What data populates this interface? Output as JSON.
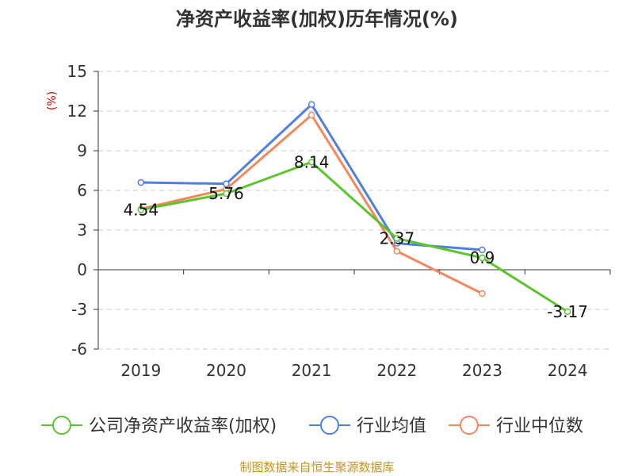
{
  "chart_data": {
    "type": "line",
    "title": "净资产收益率(加权)历年情况(%)",
    "unit_label": "(%)",
    "categories": [
      "2019",
      "2020",
      "2021",
      "2022",
      "2023",
      "2024"
    ],
    "ylim": [
      -6,
      15
    ],
    "yticks": [
      15,
      12,
      9,
      6,
      3,
      0,
      -3,
      -6
    ],
    "grid": true,
    "legend_position": "bottom",
    "series": [
      {
        "name": "公司净资产收益率(加权)",
        "color": "#5cc42c",
        "values": [
          4.54,
          5.76,
          8.14,
          2.37,
          0.9,
          -3.17
        ],
        "labels": [
          "4.54",
          "5.76",
          "8.14",
          "2.37",
          "0.9",
          "-3.17"
        ]
      },
      {
        "name": "行业均值",
        "color": "#4f7fe0",
        "values": [
          6.6,
          6.5,
          12.5,
          2.0,
          1.5,
          null
        ]
      },
      {
        "name": "行业中位数",
        "color": "#f5875a",
        "values": [
          4.6,
          6.1,
          11.7,
          1.4,
          -1.8,
          null
        ]
      }
    ]
  },
  "source": "制图数据来自恒生聚源数据库"
}
